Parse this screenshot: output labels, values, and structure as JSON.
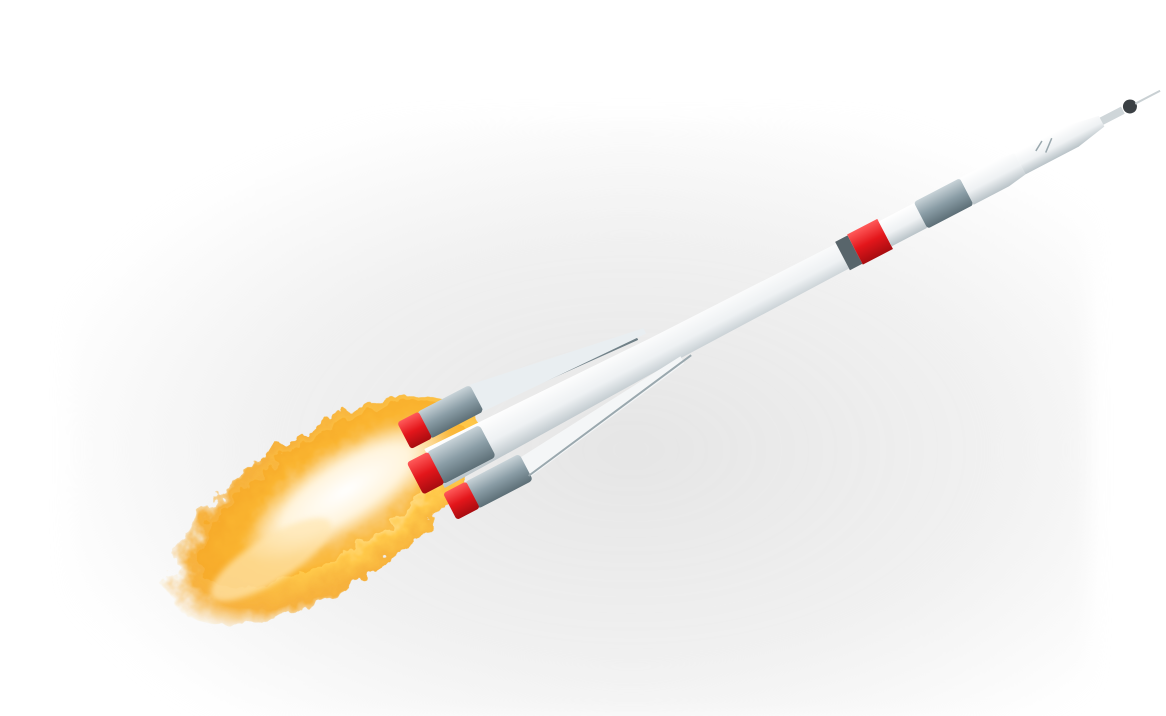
{
  "image": {
    "subject": "rocket-launch",
    "colors": {
      "background": "#ffffff",
      "backdrop_glow": "#e6e6e6",
      "rocket_body": "#f2f4f6",
      "rocket_steel": "#7f939c",
      "rocket_stripe": "#e3161b",
      "flame_outer": "#f7a51c",
      "flame_mid": "#ffc94a",
      "flame_core": "#fff3d0"
    }
  }
}
